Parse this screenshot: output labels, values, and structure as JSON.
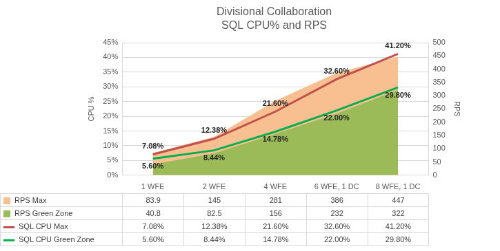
{
  "chart_data": {
    "type": "line",
    "title": [
      "Divisional Collaboration",
      "SQL CPU% and RPS"
    ],
    "categories": [
      "1 WFE",
      "2 WFE",
      "4 WFE",
      "6 WFE, 1 DC",
      "8 WFE, 1 DC"
    ],
    "y_label": "CPU %",
    "y2_label": "RPS",
    "ylim": [
      0,
      45
    ],
    "yticks": [
      {
        "value": 0,
        "label": "0%"
      },
      {
        "value": 5,
        "label": "5%"
      },
      {
        "value": 10,
        "label": "10%"
      },
      {
        "value": 15,
        "label": "15%"
      },
      {
        "value": 20,
        "label": "20%"
      },
      {
        "value": 25,
        "label": "25%"
      },
      {
        "value": 30,
        "label": "30%"
      },
      {
        "value": 35,
        "label": "35%"
      },
      {
        "value": 40,
        "label": "40%"
      },
      {
        "value": 45,
        "label": "45%"
      }
    ],
    "y2lim": [
      0,
      500
    ],
    "y2ticks": [
      0,
      50,
      100,
      150,
      200,
      250,
      300,
      350,
      400,
      450,
      500
    ],
    "grid": true,
    "legend": "bottom",
    "series": [
      {
        "name": "RPS Max",
        "type": "area",
        "axis": "y2",
        "color": "#f8c090",
        "values": [
          83.9,
          145,
          281,
          386,
          447
        ]
      },
      {
        "name": "RPS Green Zone",
        "type": "area",
        "axis": "y2",
        "color": "#9bbb59",
        "values": [
          40.8,
          82.5,
          156,
          232,
          322
        ]
      },
      {
        "name": "SQL CPU Max",
        "type": "line",
        "color": "#c0504d",
        "values": [
          7.08,
          12.38,
          21.6,
          32.6,
          41.2
        ],
        "value_labels": [
          "7.08%",
          "12.38%",
          "21.60%",
          "32.60%",
          "41.20%"
        ],
        "data_labels": true
      },
      {
        "name": "SQL CPU Green Zone",
        "type": "line",
        "color": "#00b050",
        "values": [
          5.6,
          8.44,
          14.78,
          22,
          29.8
        ],
        "value_labels": [
          "5.60%",
          "8.44%",
          "14.78%",
          "22.00%",
          "29.80%"
        ],
        "data_labels": true
      }
    ]
  }
}
